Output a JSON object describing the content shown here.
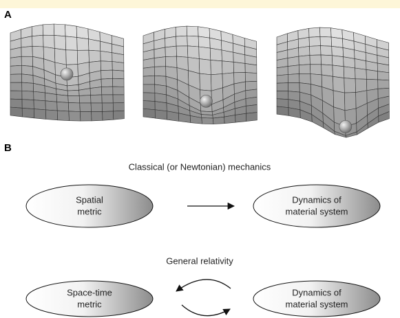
{
  "panel_a": {
    "label": "A"
  },
  "panel_b": {
    "label": "B",
    "classical": {
      "title": "Classical (or Newtonian) mechanics",
      "left": [
        "Spatial",
        "metric"
      ],
      "right": [
        "Dynamics of",
        "material system"
      ]
    },
    "relativity": {
      "title": "General relativity",
      "left": [
        "Space-time",
        "metric"
      ],
      "right": [
        "Dynamics of",
        "material system"
      ]
    }
  }
}
